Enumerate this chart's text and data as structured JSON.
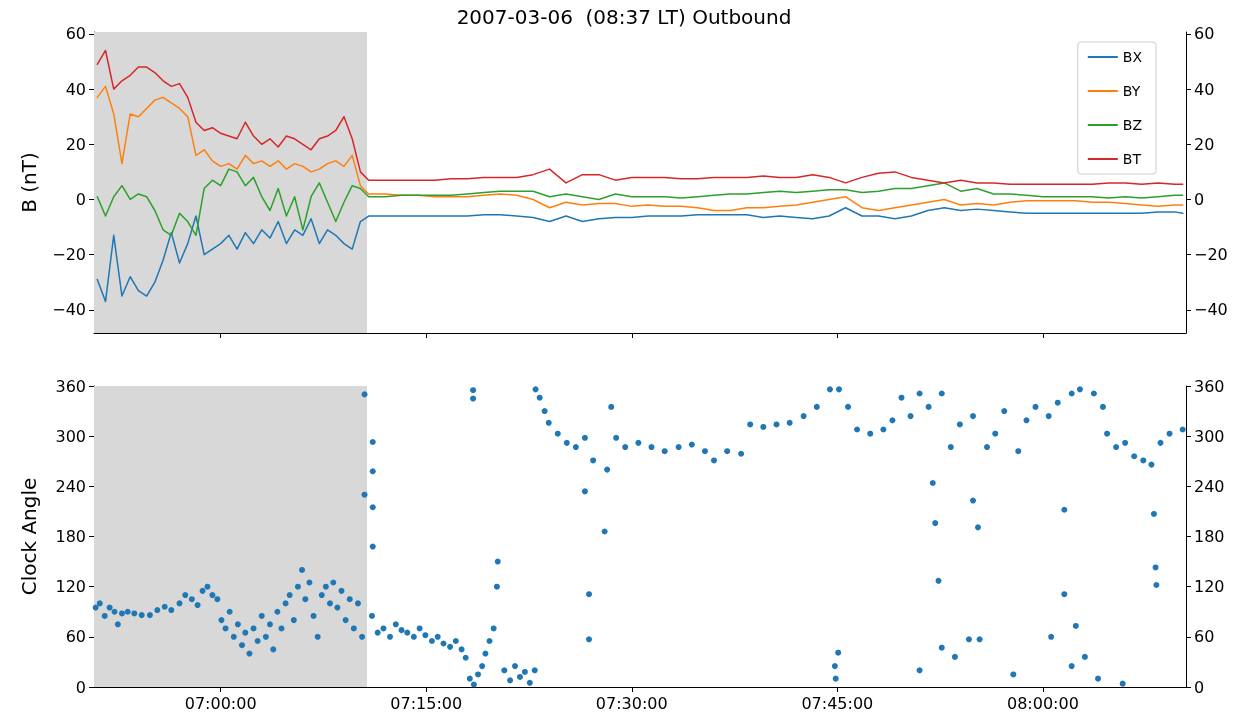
{
  "chart_data": [
    {
      "type": "line",
      "title": "2007-03-06  (08:37 LT) Outbound",
      "ylabel": "B (nT)",
      "x": [
        6.85,
        6.86,
        6.87,
        6.88,
        6.89,
        6.9,
        6.91,
        6.92,
        6.93,
        6.94,
        6.95,
        6.96,
        6.97,
        6.98,
        6.99,
        7.0,
        7.01,
        7.02,
        7.03,
        7.04,
        7.05,
        7.06,
        7.07,
        7.08,
        7.09,
        7.1,
        7.11,
        7.12,
        7.13,
        7.14,
        7.15,
        7.16,
        7.17,
        7.18,
        7.2,
        7.22,
        7.24,
        7.26,
        7.28,
        7.3,
        7.32,
        7.34,
        7.36,
        7.38,
        7.4,
        7.42,
        7.44,
        7.46,
        7.48,
        7.5,
        7.52,
        7.54,
        7.56,
        7.58,
        7.6,
        7.62,
        7.64,
        7.66,
        7.68,
        7.7,
        7.72,
        7.74,
        7.76,
        7.78,
        7.8,
        7.82,
        7.84,
        7.86,
        7.88,
        7.9,
        7.92,
        7.94,
        7.96,
        7.98,
        8.0,
        8.02,
        8.04,
        8.06,
        8.08,
        8.1,
        8.12,
        8.14,
        8.16,
        8.17
      ],
      "series": [
        {
          "name": "BX",
          "color": "#1f77b4",
          "values": [
            -29,
            -37,
            -13,
            -35,
            -28,
            -33,
            -35,
            -30,
            -22,
            -12,
            -23,
            -16,
            -6,
            -20,
            -18,
            -16,
            -13,
            -18,
            -12,
            -16,
            -11,
            -14,
            -8,
            -16,
            -11,
            -13,
            -7,
            -16,
            -11,
            -13,
            -16,
            -18,
            -8,
            -6,
            -6,
            -6,
            -6,
            -6,
            -6,
            -6,
            -5.5,
            -5.5,
            -6,
            -6.5,
            -8,
            -6,
            -8,
            -7,
            -6.5,
            -6.5,
            -6,
            -6,
            -6,
            -5.5,
            -5.5,
            -5.5,
            -5.5,
            -6.5,
            -6,
            -6.5,
            -7,
            -6,
            -3,
            -6,
            -6,
            -7,
            -6,
            -4,
            -3,
            -4,
            -3.5,
            -4,
            -4.5,
            -5,
            -5,
            -5,
            -5,
            -5,
            -5,
            -5,
            -5,
            -4.5,
            -4.5,
            -5
          ]
        },
        {
          "name": "BY",
          "color": "#ff7f0e",
          "values": [
            37,
            41,
            31,
            13,
            31,
            30,
            33,
            36,
            37,
            35,
            33,
            30,
            16,
            18,
            14,
            12,
            13,
            11,
            16,
            13,
            14,
            12,
            14,
            11,
            13,
            12,
            10,
            11,
            13,
            14,
            12,
            16,
            5,
            2,
            2,
            1.5,
            1.5,
            1,
            1,
            1,
            1.5,
            2,
            1.5,
            0,
            -3,
            -1,
            -2,
            -1.5,
            -1.5,
            -2.5,
            -2,
            -2.5,
            -2.5,
            -3,
            -4,
            -4,
            -3,
            -3,
            -2.5,
            -2,
            -1,
            0,
            1,
            -3,
            -4,
            -3,
            -2,
            -1,
            0,
            -2,
            -1.5,
            -2,
            -1,
            -0.5,
            -0.5,
            -0.5,
            -0.5,
            -1,
            -1,
            -1.5,
            -2,
            -2.5,
            -2,
            -2
          ]
        },
        {
          "name": "BZ",
          "color": "#2ca02c",
          "values": [
            1,
            -6,
            1,
            5,
            0,
            2,
            1,
            -4,
            -11,
            -13,
            -5,
            -8,
            -13,
            4,
            7,
            5,
            11,
            10,
            5,
            8,
            1,
            -4,
            4,
            -6,
            1,
            -11,
            1,
            6,
            -1,
            -8,
            -1,
            5,
            4,
            1,
            1,
            1.5,
            1.5,
            1.5,
            1.5,
            2,
            2.5,
            3,
            3,
            3,
            1,
            2,
            1,
            0,
            2,
            1,
            1,
            1,
            0.5,
            1,
            1.5,
            2,
            2,
            2.5,
            3,
            2.5,
            3,
            3.5,
            3.5,
            2.5,
            3,
            4,
            4,
            5,
            6,
            3,
            4,
            2,
            2,
            1.5,
            1,
            1,
            1,
            1,
            0.5,
            1,
            0.5,
            1,
            1.5,
            1.5
          ]
        },
        {
          "name": "BT",
          "color": "#d62728",
          "values": [
            49,
            54,
            40,
            43,
            45,
            48,
            48,
            46,
            43,
            41,
            42,
            37,
            28,
            25,
            26,
            24,
            23,
            22,
            28,
            23,
            20,
            22,
            19,
            23,
            22,
            20,
            18,
            22,
            23,
            25,
            30,
            22,
            10,
            7,
            7,
            7,
            7,
            7,
            7.5,
            7.5,
            8,
            8,
            8,
            9,
            11,
            6,
            9,
            9,
            7,
            8,
            8,
            8,
            7.5,
            7.5,
            8,
            8,
            8,
            8.5,
            8,
            8,
            9,
            8,
            6,
            8,
            9.5,
            10,
            8,
            7,
            6,
            7,
            6,
            6,
            5.5,
            5.5,
            5.5,
            5.5,
            5.5,
            5.5,
            6,
            6,
            5.5,
            6,
            5.5,
            5.5
          ]
        }
      ],
      "xlim": [
        6.846,
        8.174
      ],
      "xticks": [
        {
          "value": 7,
          "label": null
        },
        {
          "value": 7.25,
          "label": null
        },
        {
          "value": 7.5,
          "label": null
        },
        {
          "value": 7.75,
          "label": null
        },
        {
          "value": 8,
          "label": null
        }
      ],
      "ylim": [
        -48.4,
        60.7
      ],
      "yticks": [
        {
          "value": -40,
          "label": "−40"
        },
        {
          "value": -20,
          "label": "−20"
        },
        0,
        20,
        40,
        60
      ],
      "y2lim": [
        -48.4,
        60.7
      ],
      "y2ticks": [
        {
          "value": -40,
          "label": "−40"
        },
        {
          "value": -20,
          "label": "−20"
        },
        0,
        20,
        40,
        60
      ],
      "bands": [
        {
          "axis": "x",
          "from": 6.846,
          "to": 7.178,
          "color": "#d8d8d8"
        }
      ],
      "tick_labels": "y",
      "grid": false,
      "legend": "top right",
      "marker": "none",
      "line_style": "solid"
    },
    {
      "type": "scatter",
      "ylabel": "Clock Angle",
      "x": [
        6.848,
        6.853,
        6.859,
        6.865,
        6.871,
        6.875,
        6.88,
        6.887,
        6.895,
        6.904,
        6.914,
        6.923,
        6.932,
        6.94,
        6.95,
        6.957,
        6.965,
        6.972,
        6.978,
        6.984,
        6.99,
        6.996,
        7.001,
        7.006,
        7.011,
        7.016,
        7.021,
        7.026,
        7.03,
        7.035,
        7.04,
        7.045,
        7.05,
        7.055,
        7.06,
        7.064,
        7.069,
        7.074,
        7.079,
        7.084,
        7.089,
        7.094,
        7.099,
        7.103,
        7.108,
        7.113,
        7.118,
        7.123,
        7.128,
        7.133,
        7.137,
        7.142,
        7.147,
        7.152,
        7.157,
        7.162,
        7.167,
        7.172,
        7.175,
        7.175,
        7.185,
        7.185,
        7.185,
        7.185,
        7.184,
        7.191,
        7.198,
        7.206,
        7.213,
        7.22,
        7.227,
        7.235,
        7.242,
        7.249,
        7.257,
        7.264,
        7.271,
        7.279,
        7.286,
        7.293,
        7.298,
        7.303,
        7.308,
        7.313,
        7.318,
        7.322,
        7.327,
        7.332,
        7.336,
        7.337,
        7.307,
        7.307,
        7.345,
        7.352,
        7.358,
        7.364,
        7.37,
        7.376,
        7.382,
        7.383,
        7.388,
        7.394,
        7.399,
        7.41,
        7.421,
        7.432,
        7.443,
        7.443,
        7.448,
        7.448,
        7.453,
        7.467,
        7.47,
        7.475,
        7.481,
        7.492,
        7.508,
        7.524,
        7.54,
        7.557,
        7.573,
        7.589,
        7.6,
        7.616,
        7.633,
        7.644,
        7.66,
        7.676,
        7.692,
        7.709,
        7.725,
        7.741,
        7.747,
        7.748,
        7.751,
        7.752,
        7.763,
        7.774,
        7.79,
        7.806,
        7.817,
        7.828,
        7.839,
        7.85,
        7.85,
        7.861,
        7.866,
        7.869,
        7.873,
        7.877,
        7.877,
        7.888,
        7.893,
        7.899,
        7.91,
        7.915,
        7.915,
        7.921,
        7.923,
        7.932,
        7.942,
        7.953,
        7.964,
        7.97,
        7.98,
        7.991,
        8.007,
        8.01,
        8.018,
        8.026,
        8.026,
        8.035,
        8.035,
        8.04,
        8.045,
        8.051,
        8.062,
        8.067,
        8.073,
        8.078,
        8.089,
        8.097,
        8.1,
        8.111,
        8.122,
        8.132,
        8.135,
        8.137,
        8.138,
        8.143,
        8.154,
        8.17
      ],
      "series": [
        {
          "color": "#1f77b4",
          "values": [
            95,
            100,
            85,
            95,
            90,
            75,
            88,
            90,
            88,
            86,
            86,
            92,
            96,
            92,
            100,
            110,
            105,
            98,
            115,
            120,
            110,
            105,
            80,
            70,
            90,
            60,
            75,
            50,
            65,
            40,
            70,
            55,
            85,
            60,
            75,
            45,
            90,
            70,
            100,
            110,
            80,
            120,
            140,
            105,
            125,
            85,
            60,
            110,
            120,
            100,
            125,
            95,
            115,
            80,
            105,
            70,
            100,
            60,
            230,
            350,
            293,
            258,
            215,
            168,
            85,
            65,
            70,
            60,
            75,
            68,
            65,
            60,
            70,
            62,
            55,
            60,
            52,
            48,
            55,
            45,
            35,
            10,
            3,
            15,
            25,
            40,
            55,
            70,
            120,
            150,
            355,
            345,
            20,
            8,
            25,
            12,
            18,
            5,
            20,
            356,
            346,
            330,
            316,
            303,
            292,
            287,
            298,
            234,
            111,
            57,
            271,
            186,
            260,
            335,
            298,
            287,
            292,
            287,
            282,
            287,
            290,
            282,
            271,
            282,
            279,
            314,
            311,
            314,
            316,
            324,
            335,
            356,
            25,
            10,
            41,
            356,
            335,
            308,
            303,
            308,
            319,
            346,
            324,
            351,
            20,
            335,
            244,
            196,
            127,
            351,
            47,
            287,
            36,
            314,
            57,
            223,
            324,
            191,
            57,
            287,
            303,
            330,
            15,
            282,
            319,
            335,
            324,
            60,
            340,
            212,
            111,
            351,
            25,
            73,
            356,
            36,
            351,
            10,
            335,
            303,
            287,
            4,
            292,
            276,
            271,
            266,
            207,
            143,
            122,
            292,
            303,
            308
          ]
        }
      ],
      "xlim": [
        6.846,
        8.174
      ],
      "xticks": [
        {
          "value": 7,
          "label": "07:00:00"
        },
        {
          "value": 7.25,
          "label": "07:15:00"
        },
        {
          "value": 7.5,
          "label": "07:30:00"
        },
        {
          "value": 7.75,
          "label": "07:45:00"
        },
        {
          "value": 8,
          "label": "08:00:00"
        }
      ],
      "ylim": [
        0,
        360
      ],
      "yticks": [
        0,
        60,
        120,
        180,
        240,
        300,
        360
      ],
      "y2lim": [
        0,
        360
      ],
      "y2ticks": [
        0,
        60,
        120,
        180,
        240,
        300,
        360
      ],
      "bands": [
        {
          "axis": "x",
          "from": 6.846,
          "to": 7.178,
          "color": "#d8d8d8"
        }
      ],
      "grid": false,
      "legend": false,
      "marker": "circle"
    }
  ]
}
